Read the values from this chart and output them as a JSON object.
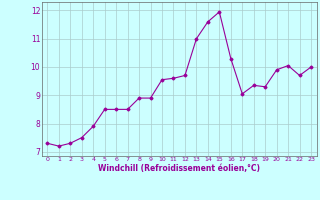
{
  "x": [
    0,
    1,
    2,
    3,
    4,
    5,
    6,
    7,
    8,
    9,
    10,
    11,
    12,
    13,
    14,
    15,
    16,
    17,
    18,
    19,
    20,
    21,
    22,
    23
  ],
  "y": [
    7.3,
    7.2,
    7.3,
    7.5,
    7.9,
    8.5,
    8.5,
    8.5,
    8.9,
    8.9,
    9.55,
    9.6,
    9.7,
    11.0,
    11.6,
    11.95,
    10.3,
    9.05,
    9.35,
    9.3,
    9.9,
    10.05,
    9.7,
    10.0
  ],
  "line_color": "#990099",
  "marker": "D",
  "marker_size": 1.5,
  "background_color": "#ccffff",
  "grid_color": "#aacccc",
  "xlabel": "Windchill (Refroidissement éolien,°C)",
  "xlabel_color": "#990099",
  "xtick_color": "#990099",
  "ytick_color": "#990099",
  "ylim": [
    6.85,
    12.3
  ],
  "xlim": [
    -0.5,
    23.5
  ],
  "yticks": [
    7,
    8,
    9,
    10,
    11,
    12
  ],
  "xticks": [
    0,
    1,
    2,
    3,
    4,
    5,
    6,
    7,
    8,
    9,
    10,
    11,
    12,
    13,
    14,
    15,
    16,
    17,
    18,
    19,
    20,
    21,
    22,
    23
  ]
}
